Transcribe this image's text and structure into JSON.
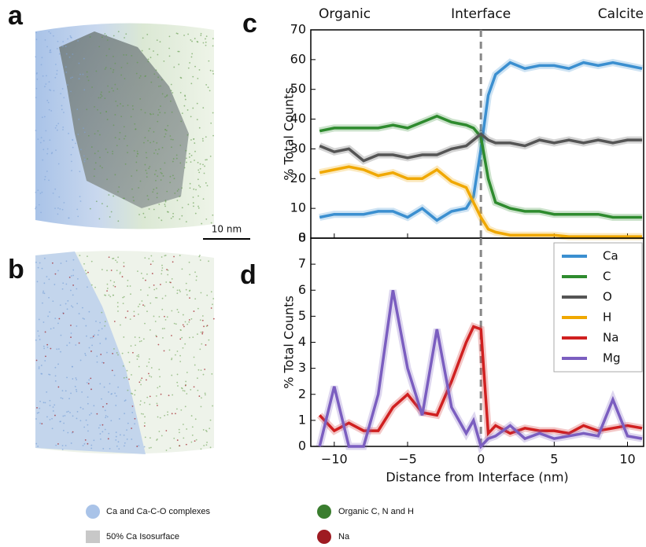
{
  "figure": {
    "panel_labels": [
      "a",
      "b",
      "c",
      "d"
    ],
    "scale_bar": "10 nm",
    "legend": [
      "Ca and Ca-C-O complexes",
      "50% Ca Isosurface",
      "Organic C, N and H",
      "Na"
    ]
  },
  "chart_data": [
    {
      "type": "line",
      "ylabel": "% Total Counts",
      "top_labels": [
        "Organic",
        "Interface",
        "Calcite"
      ],
      "x": [
        -11,
        -10,
        -9,
        -8,
        -7,
        -6,
        -5,
        -4,
        -3,
        -2,
        -1,
        -0.5,
        0,
        0.5,
        1,
        2,
        3,
        4,
        5,
        6,
        7,
        8,
        9,
        10,
        11
      ],
      "xlim": [
        -11.6,
        11.1
      ],
      "xticks": [
        {
          "value": -10,
          "label": "−10"
        },
        {
          "value": -5,
          "label": "−5"
        },
        0,
        5,
        10
      ],
      "ylim": [
        0,
        70
      ],
      "yticks": [
        0,
        10,
        20,
        30,
        40,
        50,
        60,
        70
      ],
      "series": [
        {
          "name": "Ca",
          "color": "#3b8fd0",
          "values": [
            7,
            8,
            8,
            8,
            9,
            9,
            7,
            10,
            6,
            9,
            10,
            14,
            30,
            48,
            55,
            59,
            57,
            58,
            58,
            57,
            59,
            58,
            59,
            58,
            57
          ]
        },
        {
          "name": "C",
          "color": "#2e8b2e",
          "values": [
            36,
            37,
            37,
            37,
            37,
            38,
            37,
            39,
            41,
            39,
            38,
            37,
            34,
            20,
            12,
            10,
            9,
            9,
            8,
            8,
            8,
            8,
            7,
            7,
            7
          ]
        },
        {
          "name": "O",
          "color": "#555555",
          "values": [
            31,
            29,
            30,
            26,
            28,
            28,
            27,
            28,
            28,
            30,
            31,
            33,
            35,
            33,
            32,
            32,
            31,
            33,
            32,
            33,
            32,
            33,
            32,
            33,
            33
          ]
        },
        {
          "name": "H",
          "color": "#f0a800",
          "values": [
            22,
            23,
            24,
            23,
            21,
            22,
            20,
            20,
            23,
            19,
            17,
            12,
            7,
            3,
            2,
            1,
            1,
            1,
            1,
            0.5,
            0.5,
            0.5,
            0.5,
            0.5,
            0.5
          ]
        }
      ]
    },
    {
      "type": "line",
      "ylabel": "% Total Counts",
      "xlabel": "Distance from Interface (nm)",
      "legend": "upper right",
      "x": [
        -11,
        -10,
        -9,
        -8,
        -7,
        -6,
        -5,
        -4,
        -3,
        -2,
        -1,
        -0.5,
        0,
        0.5,
        1,
        2,
        3,
        4,
        5,
        6,
        7,
        8,
        9,
        10,
        11
      ],
      "xlim": [
        -11.6,
        11.1
      ],
      "xticks": [
        {
          "value": -10,
          "label": "−10"
        },
        {
          "value": -5,
          "label": "−5"
        },
        0,
        5,
        10
      ],
      "ylim": [
        0,
        8
      ],
      "yticks": [
        0,
        1,
        2,
        3,
        4,
        5,
        6,
        7,
        8
      ],
      "series": [
        {
          "name": "Na",
          "color": "#d02020",
          "values": [
            1.2,
            0.6,
            0.9,
            0.6,
            0.6,
            1.5,
            2.0,
            1.3,
            1.2,
            2.5,
            4.0,
            4.6,
            4.5,
            0.5,
            0.8,
            0.5,
            0.7,
            0.6,
            0.6,
            0.5,
            0.8,
            0.6,
            0.7,
            0.8,
            0.7
          ]
        },
        {
          "name": "Mg",
          "color": "#7b5ec0",
          "values": [
            0,
            2.3,
            0,
            0,
            2,
            6,
            3,
            1.2,
            4.5,
            1.5,
            0.5,
            1,
            0,
            0.3,
            0.4,
            0.8,
            0.3,
            0.5,
            0.3,
            0.4,
            0.5,
            0.4,
            1.8,
            0.4,
            0.3
          ]
        }
      ]
    }
  ]
}
